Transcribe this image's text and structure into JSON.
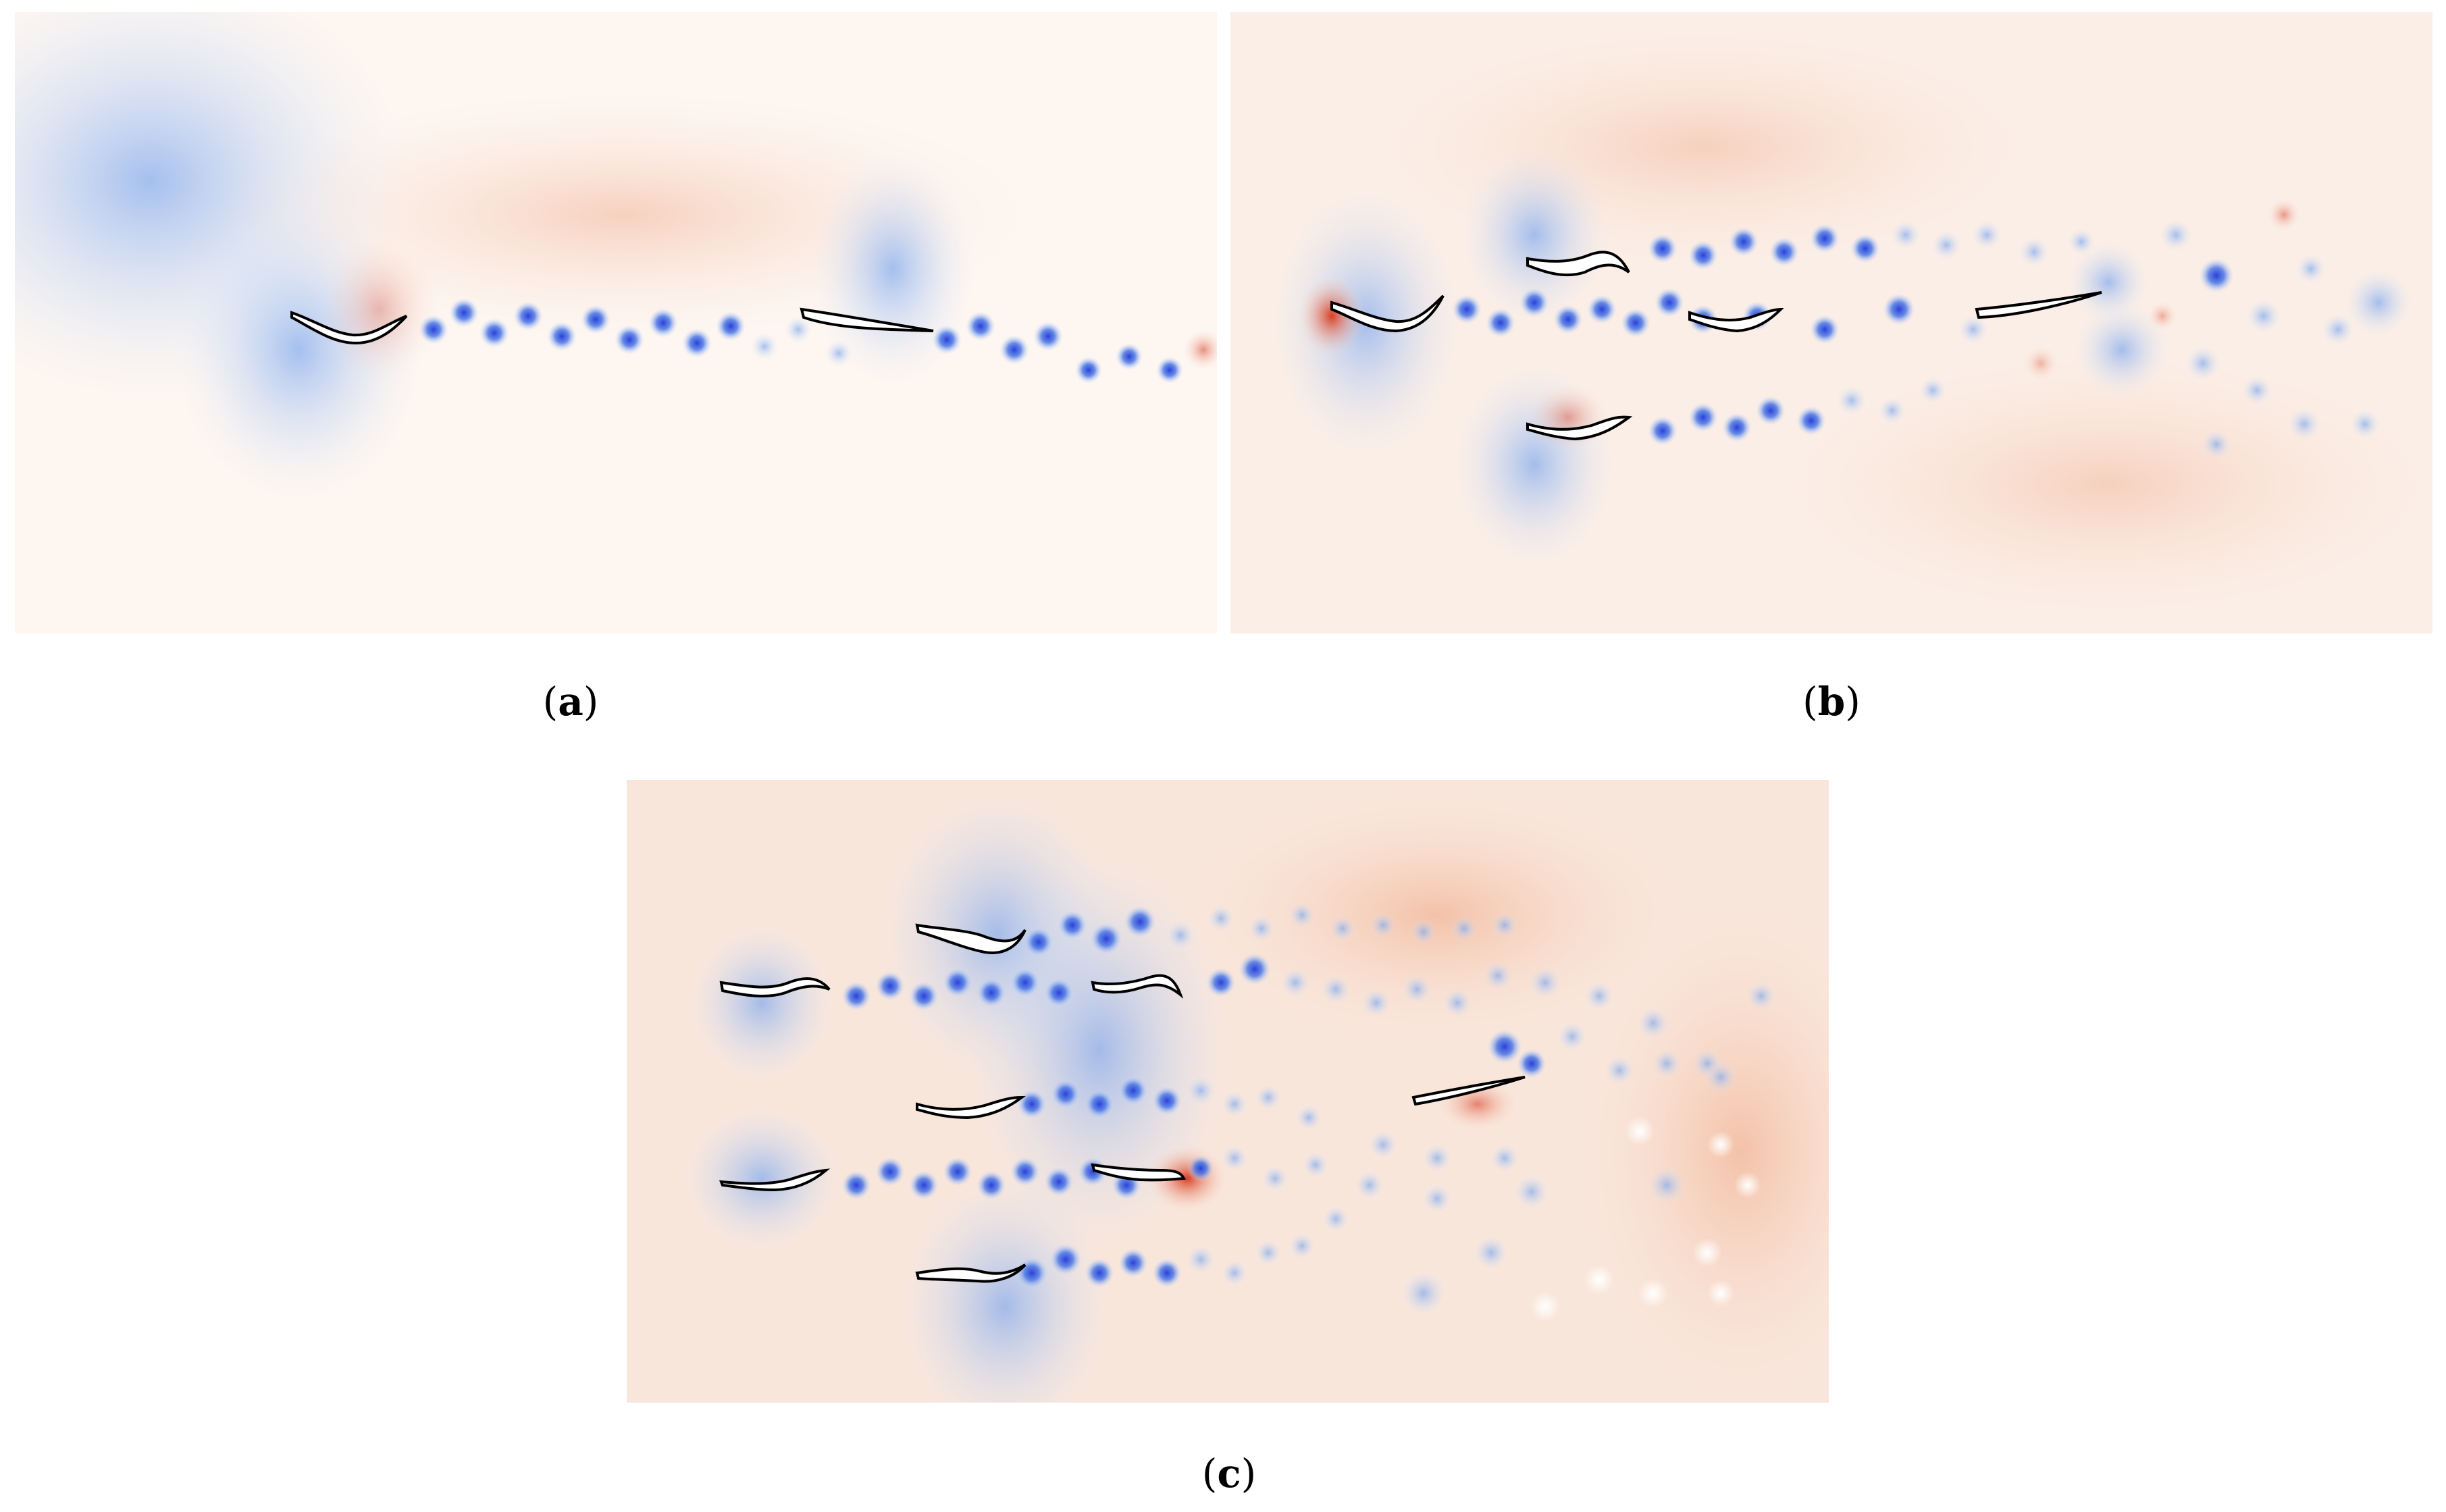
{
  "figure": {
    "colors": {
      "negative_strong": "#2a3fd6",
      "negative_light": "#cfe2fb",
      "positive_strong": "#d8361a",
      "positive_light": "#f8d9c9",
      "background": "#ffffff",
      "foil_outline": "#000000"
    },
    "panels": [
      {
        "id": "a",
        "caption_open": "(",
        "caption_letter": "a",
        "caption_close": ")"
      },
      {
        "id": "b",
        "caption_open": "(",
        "caption_letter": "b",
        "caption_close": ")"
      },
      {
        "id": "c",
        "caption_open": "(",
        "caption_letter": "c",
        "caption_close": ")"
      }
    ]
  }
}
